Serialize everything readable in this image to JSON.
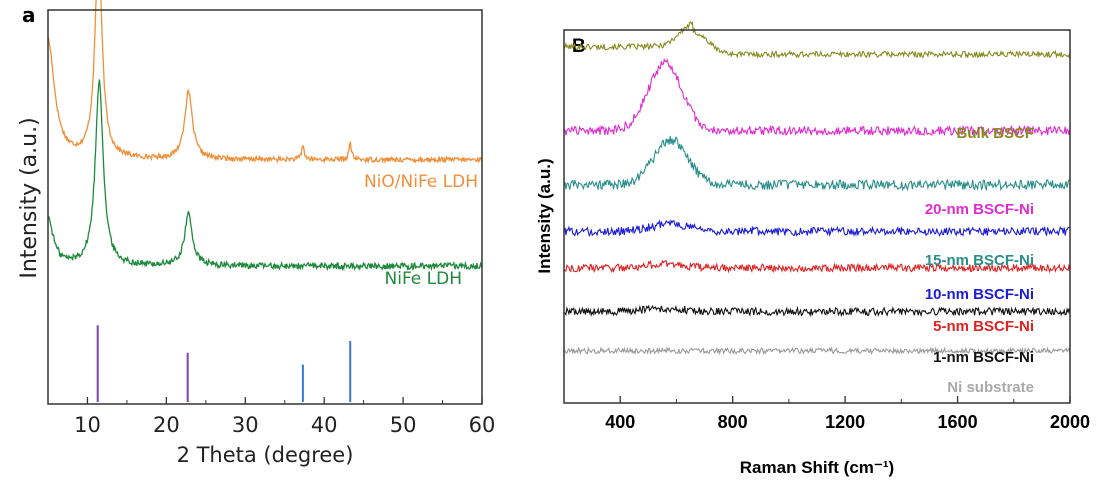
{
  "chart_data": [
    {
      "panel_label": "a",
      "type": "line",
      "title": "",
      "xlabel": "2 Theta (degree)",
      "ylabel": "Intensity (a.u.)",
      "xlim": [
        5,
        60
      ],
      "xticks": [
        "10",
        "20",
        "30",
        "40",
        "50",
        "60"
      ],
      "grid": false,
      "series": [
        {
          "name": "NiO/NiFe LDH",
          "color": "#f0903a",
          "baseline": 0.62,
          "noise": 0.006,
          "peaks": [
            {
              "x": 5.0,
              "h": 0.3,
              "w": 1.0
            },
            {
              "x": 11.4,
              "h": 0.52,
              "w": 0.55
            },
            {
              "x": 22.8,
              "h": 0.17,
              "w": 0.6
            },
            {
              "x": 37.3,
              "h": 0.035,
              "w": 0.2
            },
            {
              "x": 43.3,
              "h": 0.04,
              "w": 0.2
            }
          ]
        },
        {
          "name": "NiFe LDH",
          "color": "#1f8a3c",
          "baseline": 0.35,
          "noise": 0.008,
          "peaks": [
            {
              "x": 5.0,
              "h": 0.12,
              "w": 0.8
            },
            {
              "x": 11.5,
              "h": 0.47,
              "w": 0.6
            },
            {
              "x": 22.8,
              "h": 0.13,
              "w": 0.6
            }
          ]
        }
      ],
      "reference_lines": [
        {
          "x": 11.3,
          "height": 0.2,
          "color": "#7a45b0"
        },
        {
          "x": 22.7,
          "height": 0.13,
          "color": "#7a45b0"
        },
        {
          "x": 37.3,
          "height": 0.1,
          "color": "#3a78d0"
        },
        {
          "x": 43.3,
          "height": 0.16,
          "color": "#3a78d0"
        }
      ]
    },
    {
      "panel_label": "B",
      "type": "line",
      "title": "",
      "xlabel": "Raman Shift (cm⁻¹)",
      "ylabel": "Intensity (a.u.)",
      "xlim": [
        200,
        2000
      ],
      "xticks": [
        "400",
        "800",
        "1200",
        "1600",
        "2000"
      ],
      "grid": false,
      "series": [
        {
          "name": "Bulk BSCF",
          "color": "#8a8a22",
          "label_color": "#8a8a22",
          "baseline": 0.935,
          "noise": 0.008,
          "peak_x": 660,
          "peak_h": 0.06,
          "peak_w": 70,
          "low_offset": 0.02
        },
        {
          "name": "20-nm BSCF-Ni",
          "color": "#e02ccf",
          "label_color": "#e02ccf",
          "baseline": 0.73,
          "noise": 0.012,
          "peak_x": 560,
          "peak_h": 0.18,
          "peak_w": 85,
          "low_offset": 0.0
        },
        {
          "name": "15-nm BSCF-Ni",
          "color": "#2a8f8a",
          "label_color": "#2a8f8a",
          "baseline": 0.585,
          "noise": 0.013,
          "peak_x": 580,
          "peak_h": 0.12,
          "peak_w": 85,
          "low_offset": 0.0
        },
        {
          "name": "10-nm BSCF-Ni",
          "color": "#1c1cdc",
          "label_color": "#1c1cdc",
          "baseline": 0.46,
          "noise": 0.011,
          "peak_x": 580,
          "peak_h": 0.02,
          "peak_w": 100,
          "low_offset": 0.0
        },
        {
          "name": "5-nm BSCF-Ni",
          "color": "#e02222",
          "label_color": "#e02222",
          "baseline": 0.362,
          "noise": 0.01,
          "peak_x": 560,
          "peak_h": 0.01,
          "peak_w": 100,
          "low_offset": 0.0
        },
        {
          "name": "1-nm BSCF-Ni",
          "color": "#111111",
          "label_color": "#111111",
          "baseline": 0.245,
          "noise": 0.01,
          "peak_x": 560,
          "peak_h": 0.008,
          "peak_w": 100,
          "low_offset": 0.0
        },
        {
          "name": "Ni substrate",
          "color": "#9a9a9a",
          "label_color": "#aaaaaa",
          "baseline": 0.14,
          "noise": 0.007,
          "peak_x": 600,
          "peak_h": 0.0,
          "peak_w": 100,
          "low_offset": 0.0
        }
      ]
    }
  ]
}
